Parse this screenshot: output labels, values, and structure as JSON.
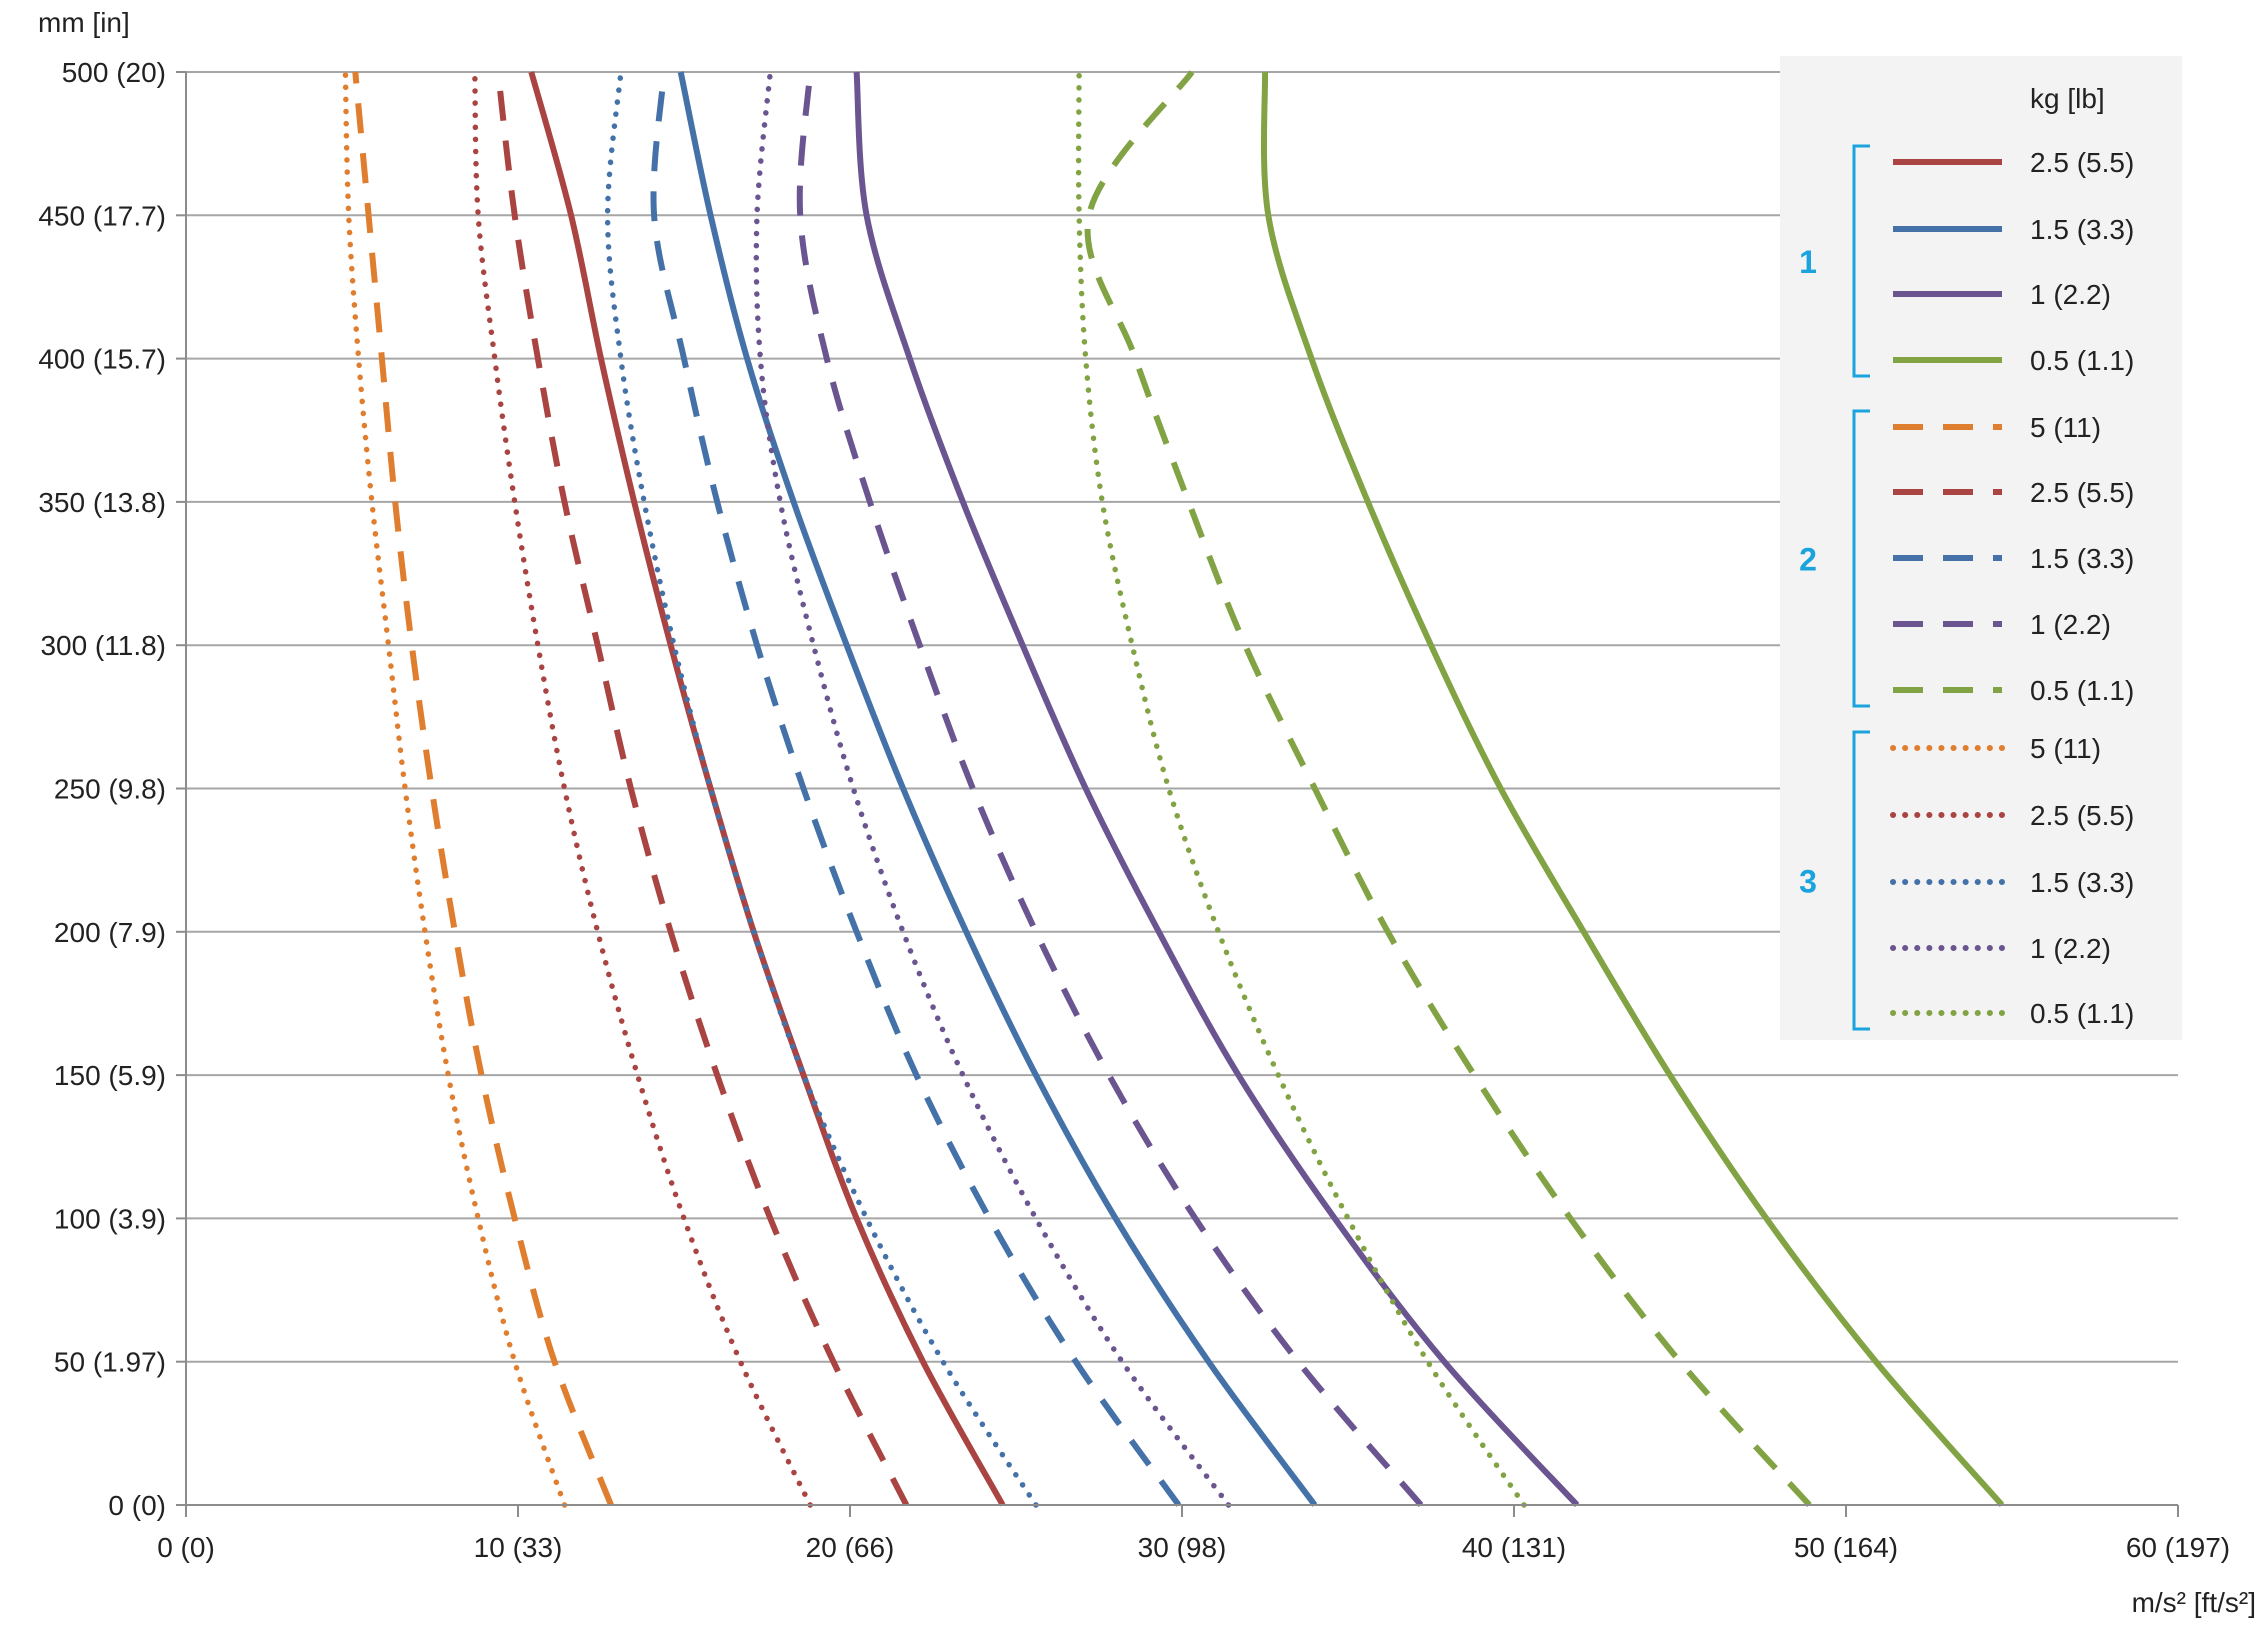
{
  "chart_data": {
    "type": "line",
    "xlabel": "m/s² [ft/s²]",
    "ylabel": "mm [in]",
    "xlim": [
      0,
      60
    ],
    "ylim": [
      0,
      500
    ],
    "x_ticks": [
      {
        "value": 0,
        "label": "0 (0)"
      },
      {
        "value": 10,
        "label": "10 (33)"
      },
      {
        "value": 20,
        "label": "20 (66)"
      },
      {
        "value": 30,
        "label": "30 (98)"
      },
      {
        "value": 40,
        "label": "40 (131)"
      },
      {
        "value": 50,
        "label": "50 (164)"
      },
      {
        "value": 60,
        "label": "60 (197)"
      }
    ],
    "y_ticks": [
      {
        "value": 0,
        "label": "0 (0)"
      },
      {
        "value": 50,
        "label": "50 (1.97)"
      },
      {
        "value": 100,
        "label": "100 (3.9)"
      },
      {
        "value": 150,
        "label": "150 (5.9)"
      },
      {
        "value": 200,
        "label": "200 (7.9)"
      },
      {
        "value": 250,
        "label": "250 (9.8)"
      },
      {
        "value": 300,
        "label": "300 (11.8)"
      },
      {
        "value": 350,
        "label": "350 (13.8)"
      },
      {
        "value": 400,
        "label": "400 (15.7)"
      },
      {
        "value": 450,
        "label": "450 (17.7)"
      },
      {
        "value": 500,
        "label": "500 (20)"
      }
    ],
    "grid": "horizontal",
    "legend": {
      "title": "kg [lb]",
      "placement": "top-right",
      "groups": [
        {
          "label": "1",
          "style": "solid",
          "entries": [
            "2.5 (5.5)",
            "1.5 (3.3)",
            "1 (2.2)",
            "0.5 (1.1)"
          ]
        },
        {
          "label": "2",
          "style": "dashed",
          "entries": [
            "5 (11)",
            "2.5 (5.5)",
            "1.5 (3.3)",
            "1 (2.2)",
            "0.5 (1.1)"
          ]
        },
        {
          "label": "3",
          "style": "dotted",
          "entries": [
            "5 (11)",
            "2.5 (5.5)",
            "1.5 (3.3)",
            "1 (2.2)",
            "0.5 (1.1)"
          ]
        }
      ]
    },
    "group_color": "#1aa3dd",
    "series": [
      {
        "group": "1",
        "style": "solid",
        "color": "#a94442",
        "values": [
          [
            24.6,
            0
          ],
          [
            22.2,
            50
          ],
          [
            20.2,
            100
          ],
          [
            18.6,
            150
          ],
          [
            17.1,
            200
          ],
          [
            15.8,
            250
          ],
          [
            14.6,
            300
          ],
          [
            13.5,
            350
          ],
          [
            12.5,
            400
          ],
          [
            11.6,
            450
          ],
          [
            10.4,
            500
          ]
        ]
      },
      {
        "group": "1",
        "style": "solid",
        "color": "#4472a8",
        "values": [
          [
            34.0,
            0
          ],
          [
            30.8,
            50
          ],
          [
            28.0,
            100
          ],
          [
            25.6,
            150
          ],
          [
            23.5,
            200
          ],
          [
            21.6,
            250
          ],
          [
            19.9,
            300
          ],
          [
            18.3,
            350
          ],
          [
            16.9,
            400
          ],
          [
            15.8,
            450
          ],
          [
            14.9,
            500
          ]
        ]
      },
      {
        "group": "1",
        "style": "solid",
        "color": "#6a5590",
        "values": [
          [
            41.9,
            0
          ],
          [
            37.9,
            50
          ],
          [
            34.6,
            100
          ],
          [
            31.7,
            150
          ],
          [
            29.3,
            200
          ],
          [
            27.1,
            250
          ],
          [
            25.2,
            300
          ],
          [
            23.4,
            350
          ],
          [
            21.8,
            400
          ],
          [
            20.5,
            450
          ],
          [
            20.2,
            500
          ]
        ]
      },
      {
        "group": "1",
        "style": "solid",
        "color": "#82a344",
        "values": [
          [
            54.7,
            0
          ],
          [
            50.9,
            50
          ],
          [
            47.6,
            100
          ],
          [
            44.7,
            150
          ],
          [
            42.1,
            200
          ],
          [
            39.6,
            250
          ],
          [
            37.5,
            300
          ],
          [
            35.6,
            350
          ],
          [
            33.9,
            400
          ],
          [
            32.6,
            450
          ],
          [
            32.5,
            500
          ]
        ]
      },
      {
        "group": "2",
        "style": "dashed",
        "color": "#e07e30",
        "values": [
          [
            12.8,
            0
          ],
          [
            11.1,
            50
          ],
          [
            9.9,
            100
          ],
          [
            8.9,
            150
          ],
          [
            8.1,
            200
          ],
          [
            7.4,
            250
          ],
          [
            6.8,
            300
          ],
          [
            6.3,
            350
          ],
          [
            5.9,
            400
          ],
          [
            5.5,
            450
          ],
          [
            5.1,
            500
          ]
        ]
      },
      {
        "group": "2",
        "style": "dashed",
        "color": "#a94442",
        "values": [
          [
            21.7,
            0
          ],
          [
            19.5,
            50
          ],
          [
            17.6,
            100
          ],
          [
            16.0,
            150
          ],
          [
            14.6,
            200
          ],
          [
            13.4,
            250
          ],
          [
            12.4,
            300
          ],
          [
            11.4,
            350
          ],
          [
            10.6,
            400
          ],
          [
            9.9,
            450
          ],
          [
            9.4,
            500
          ]
        ]
      },
      {
        "group": "2",
        "style": "dashed",
        "color": "#4472a8",
        "values": [
          [
            29.9,
            0
          ],
          [
            26.8,
            50
          ],
          [
            24.2,
            100
          ],
          [
            22.0,
            150
          ],
          [
            20.2,
            200
          ],
          [
            18.6,
            250
          ],
          [
            17.2,
            300
          ],
          [
            16.0,
            350
          ],
          [
            15.0,
            400
          ],
          [
            14.1,
            450
          ],
          [
            14.4,
            500
          ]
        ]
      },
      {
        "group": "2",
        "style": "dashed",
        "color": "#6a5590",
        "values": [
          [
            37.2,
            0
          ],
          [
            33.5,
            50
          ],
          [
            30.4,
            100
          ],
          [
            27.8,
            150
          ],
          [
            25.6,
            200
          ],
          [
            23.7,
            250
          ],
          [
            22.1,
            300
          ],
          [
            20.6,
            350
          ],
          [
            19.3,
            400
          ],
          [
            18.5,
            450
          ],
          [
            18.8,
            500
          ]
        ]
      },
      {
        "group": "2",
        "style": "dashed",
        "color": "#82a344",
        "values": [
          [
            48.9,
            0
          ],
          [
            45.0,
            50
          ],
          [
            41.7,
            100
          ],
          [
            38.8,
            150
          ],
          [
            36.2,
            200
          ],
          [
            34.0,
            250
          ],
          [
            31.9,
            300
          ],
          [
            30.2,
            350
          ],
          [
            28.6,
            400
          ],
          [
            27.2,
            450
          ],
          [
            30.3,
            500
          ]
        ]
      },
      {
        "group": "3",
        "style": "dotted",
        "color": "#e07e30",
        "values": [
          [
            11.4,
            0
          ],
          [
            9.9,
            50
          ],
          [
            8.8,
            100
          ],
          [
            7.9,
            150
          ],
          [
            7.2,
            200
          ],
          [
            6.6,
            250
          ],
          [
            6.1,
            300
          ],
          [
            5.6,
            350
          ],
          [
            5.2,
            400
          ],
          [
            4.9,
            450
          ],
          [
            4.8,
            500
          ]
        ]
      },
      {
        "group": "3",
        "style": "dotted",
        "color": "#a94442",
        "values": [
          [
            18.8,
            0
          ],
          [
            16.7,
            50
          ],
          [
            15.0,
            100
          ],
          [
            13.6,
            150
          ],
          [
            12.4,
            200
          ],
          [
            11.4,
            250
          ],
          [
            10.6,
            300
          ],
          [
            9.9,
            350
          ],
          [
            9.3,
            400
          ],
          [
            8.8,
            450
          ],
          [
            8.7,
            500
          ]
        ]
      },
      {
        "group": "3",
        "style": "dotted",
        "color": "#4472a8",
        "values": [
          [
            25.6,
            0
          ],
          [
            22.8,
            50
          ],
          [
            20.5,
            100
          ],
          [
            18.6,
            150
          ],
          [
            17.1,
            200
          ],
          [
            15.8,
            250
          ],
          [
            14.7,
            300
          ],
          [
            13.8,
            350
          ],
          [
            13.1,
            400
          ],
          [
            12.7,
            450
          ],
          [
            13.1,
            500
          ]
        ]
      },
      {
        "group": "3",
        "style": "dotted",
        "color": "#6a5590",
        "values": [
          [
            31.4,
            0
          ],
          [
            28.2,
            50
          ],
          [
            25.6,
            100
          ],
          [
            23.4,
            150
          ],
          [
            21.6,
            200
          ],
          [
            20.1,
            250
          ],
          [
            18.9,
            300
          ],
          [
            17.9,
            350
          ],
          [
            17.3,
            400
          ],
          [
            17.2,
            450
          ],
          [
            17.6,
            500
          ]
        ]
      },
      {
        "group": "3",
        "style": "dotted",
        "color": "#82a344",
        "values": [
          [
            40.3,
            0
          ],
          [
            37.4,
            50
          ],
          [
            35.0,
            100
          ],
          [
            32.9,
            150
          ],
          [
            31.1,
            200
          ],
          [
            29.6,
            250
          ],
          [
            28.5,
            300
          ],
          [
            27.6,
            350
          ],
          [
            27.1,
            400
          ],
          [
            26.9,
            450
          ],
          [
            26.9,
            500
          ]
        ]
      }
    ]
  }
}
